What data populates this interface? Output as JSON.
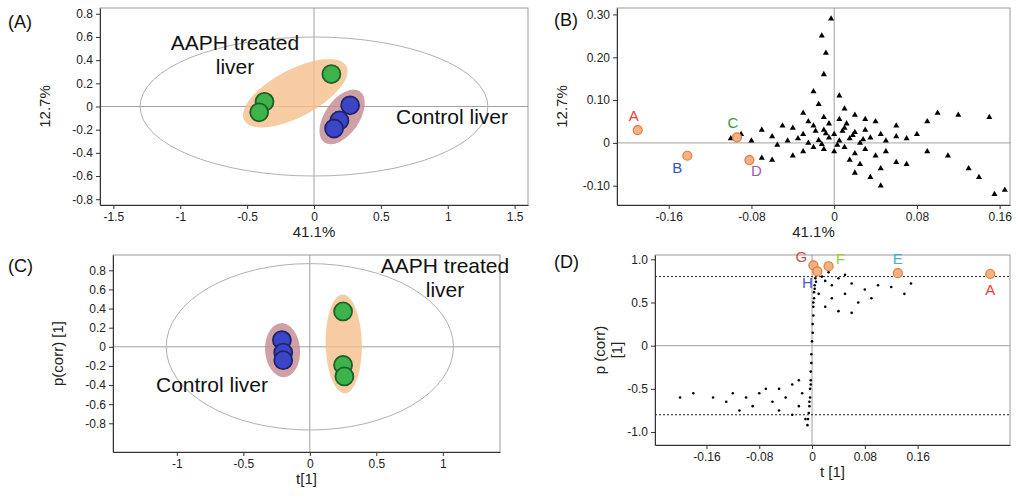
{
  "chart_data": [
    {
      "type": "scatter",
      "title": "(A)",
      "x_label": "41.1%",
      "y_label": "12.7%",
      "xlim": [
        -1.6,
        1.6
      ],
      "ylim": [
        -0.85,
        0.85
      ],
      "xticks": [
        -1.5,
        -1,
        -0.5,
        0,
        0.5,
        1,
        1.5
      ],
      "yticks": [
        0.8,
        0.6,
        0.4,
        0.2,
        0,
        -0.2,
        -0.4,
        -0.6,
        -0.8
      ],
      "ellipse": {
        "cx": 0,
        "cy": 0,
        "rx": 1.3,
        "ry": 0.6
      },
      "ref_lines": {
        "x": [
          0
        ],
        "y": [
          0
        ]
      },
      "series": [
        {
          "name": "AAPH treated liver",
          "color": "#3cb44b",
          "marker": "circle",
          "x": [
            -0.37,
            -0.41,
            0.13
          ],
          "y": [
            0.04,
            -0.05,
            0.28
          ]
        },
        {
          "name": "Control liver",
          "color": "#3a45c8",
          "marker": "circle",
          "x": [
            0.27,
            0.19,
            0.15
          ],
          "y": [
            0.01,
            -0.12,
            -0.19
          ]
        }
      ]
    },
    {
      "type": "scatter",
      "title": "(B)",
      "x_label": "41.1%",
      "y_label": "12.7%",
      "xlim": [
        -0.21,
        0.17
      ],
      "ylim": [
        -0.145,
        0.315
      ],
      "xticks": [
        -0.16,
        -0.08,
        0,
        0.08,
        0.16
      ],
      "yticks": [
        {
          "value": 0.3,
          "label": "0.30"
        },
        {
          "value": 0.2,
          "label": "0.20"
        },
        {
          "value": 0.1,
          "label": "0.10"
        },
        0,
        {
          "value": -0.1,
          "label": "-0.10"
        }
      ],
      "ref_lines": {
        "x": [
          0
        ],
        "y": [
          0
        ]
      },
      "series": [
        {
          "color": "#000000",
          "marker": "triangle",
          "x": [
            -0.003,
            -0.012,
            -0.008,
            -0.01,
            -0.02,
            0.005,
            -0.015,
            0.01,
            -0.03,
            0.02,
            0.1,
            0.12,
            0.15,
            0.09,
            0.06,
            0.04,
            -0.05,
            -0.07,
            -0.09,
            -0.06,
            -0.04,
            -0.03,
            -0.02,
            -0.01,
            0,
            0.01,
            0.02,
            0.03,
            0.015,
            0.005,
            -0.005,
            -0.015,
            -0.025,
            -0.035,
            -0.045,
            -0.055,
            0.025,
            0.035,
            0.045,
            0.05,
            0.06,
            0.07,
            0.08,
            -0.08,
            -0.1,
            -0.02,
            -0.01,
            0,
            0.01,
            0.02,
            0.03,
            0.04,
            0.05,
            -0.03,
            -0.04,
            -0.06,
            -0.07,
            0.015,
            0.025,
            0.045,
            0.06,
            0.035,
            0.045,
            0.02,
            0.13,
            0.14,
            0.155,
            0.165,
            0.11,
            0.09,
            0.07,
            -0.005,
            0.005,
            -0.01,
            0.012,
            -0.025,
            0.03,
            0.008,
            -0.008,
            0.018,
            -0.018,
            0.003,
            -0.012,
            0.028
          ],
          "y": [
            0.29,
            0.25,
            0.21,
            0.16,
            0.12,
            0.11,
            0.09,
            0.08,
            0.07,
            0.065,
            0.07,
            0.065,
            0.06,
            0.05,
            0.04,
            0.05,
            0.04,
            0.03,
            0.02,
            0.015,
            0.035,
            0.02,
            0.04,
            0.03,
            0.02,
            0.035,
            0.025,
            0.03,
            0.01,
            0.005,
            0.012,
            0.006,
            0,
            0.01,
            0.005,
            -0.005,
            0,
            0.012,
            0.02,
            0.005,
            0.015,
            0.01,
            0.02,
            0.005,
            0.01,
            -0.01,
            -0.015,
            -0.02,
            -0.01,
            -0.025,
            -0.015,
            -0.03,
            -0.02,
            -0.02,
            -0.03,
            -0.04,
            -0.035,
            -0.04,
            -0.05,
            -0.06,
            -0.045,
            -0.08,
            -0.1,
            -0.07,
            -0.06,
            -0.08,
            -0.12,
            -0.11,
            -0.03,
            -0.02,
            -0.05,
            0.045,
            0.055,
            0.06,
            0.045,
            0.05,
            0.055,
            0.028,
            0.022,
            0.018,
            0.028,
            -0.005,
            -0.003,
            0.008
          ]
        }
      ],
      "annotations": [
        {
          "text": "A",
          "x": -0.19,
          "y": 0.03,
          "color": "#e8413a"
        },
        {
          "text": "B",
          "x": -0.142,
          "y": -0.03,
          "color": "#3355bb"
        },
        {
          "text": "C",
          "x": -0.094,
          "y": 0.013,
          "color": "#3a9a3a"
        },
        {
          "text": "D",
          "x": -0.082,
          "y": -0.04,
          "color": "#9b59b6"
        }
      ]
    },
    {
      "type": "scatter",
      "title": "(C)",
      "x_label": "t[1]",
      "y_label": "p(corr) [1]",
      "xlim": [
        -1.48,
        1.43
      ],
      "ylim": [
        -1.1,
        0.96
      ],
      "xticks": [
        -1,
        -0.5,
        0,
        0.5,
        1
      ],
      "yticks": [
        0.8,
        0.6,
        0.4,
        0.2,
        0,
        -0.2,
        -0.4,
        -0.6,
        -0.8
      ],
      "ellipse": {
        "cx": 0,
        "cy": 0,
        "rx": 1.08,
        "ry": 0.87
      },
      "ref_lines": {
        "x": [
          0
        ],
        "y": [
          0
        ]
      },
      "series": [
        {
          "name": "AAPH treated liver",
          "color": "#3cb44b",
          "marker": "circle",
          "x": [
            0.25,
            0.25,
            0.26
          ],
          "y": [
            0.37,
            -0.19,
            -0.31
          ]
        },
        {
          "name": "Control liver",
          "color": "#3a45c8",
          "marker": "circle",
          "x": [
            -0.21,
            -0.2,
            -0.2
          ],
          "y": [
            0.07,
            -0.06,
            -0.14
          ]
        }
      ]
    },
    {
      "type": "scatter",
      "title": "(D)",
      "x_label": "t [1]",
      "y_label": "p (corr) [1]",
      "xlim": [
        -0.238,
        0.3
      ],
      "ylim": [
        -1.15,
        1.05
      ],
      "xticks": [
        -0.16,
        -0.08,
        0,
        0.08,
        0.16
      ],
      "yticks": [
        {
          "value": 1,
          "label": "1.0"
        },
        0.5,
        0,
        -0.5,
        {
          "value": -1,
          "label": "-1.0"
        }
      ],
      "ref_lines": {
        "x": [
          0
        ],
        "y": [
          0
        ]
      },
      "cutoff_lines": {
        "y": [
          0.8,
          -0.8
        ]
      },
      "series": [
        {
          "color": "#000000",
          "marker": "dot",
          "x": [
            0,
            0.001,
            0.001,
            0.002,
            0.002,
            0.003,
            0.003,
            0.004,
            0.005,
            0.006,
            0.007,
            0.002,
            0.004,
            0.006,
            0.02,
            0.03,
            0.04,
            0.06,
            0.08,
            0.1,
            0.12,
            0.05,
            0.03,
            0.07,
            0.02,
            0.09,
            0.15,
            0.14,
            0.04,
            0.01,
            0.015,
            0.025,
            0.05,
            0.06,
            -0.001,
            -0.001,
            -0.002,
            -0.002,
            -0.003,
            -0.003,
            -0.004,
            -0.005,
            -0.006,
            -0.007,
            -0.002,
            -0.004,
            -0.02,
            -0.03,
            -0.05,
            -0.08,
            -0.1,
            -0.12,
            -0.15,
            -0.18,
            -0.2,
            -0.04,
            -0.06,
            -0.09,
            -0.11,
            -0.02,
            -0.03,
            -0.01,
            -0.07,
            -0.13,
            -0.05,
            -0.015
          ],
          "y": [
            0.05,
            0.15,
            0.25,
            0.35,
            0.45,
            0.55,
            0.62,
            0.7,
            0.78,
            0.84,
            0.9,
            0.5,
            0.66,
            0.74,
            0.75,
            0.7,
            0.78,
            0.72,
            0.65,
            0.7,
            0.68,
            0.6,
            0.55,
            0.5,
            0.45,
            0.55,
            0.72,
            0.6,
            0.4,
            0.6,
            0.8,
            0.85,
            0.82,
            0.38,
            -0.1,
            -0.2,
            -0.3,
            -0.4,
            -0.5,
            -0.6,
            -0.7,
            -0.78,
            -0.85,
            -0.92,
            -0.45,
            -0.65,
            -0.4,
            -0.45,
            -0.5,
            -0.55,
            -0.6,
            -0.55,
            -0.6,
            -0.55,
            -0.6,
            -0.6,
            -0.65,
            -0.7,
            -0.75,
            -0.7,
            -0.8,
            -0.85,
            -0.5,
            -0.65,
            -0.75,
            -0.55
          ]
        }
      ],
      "annotations": [
        {
          "text": "G",
          "x": 0.002,
          "y": 0.93,
          "color": "#c0504d"
        },
        {
          "text": "F",
          "x": 0.025,
          "y": 0.92,
          "color": "#9acd32"
        },
        {
          "text": "H",
          "x": 0.008,
          "y": 0.86,
          "color": "#3a5fcd"
        },
        {
          "text": "E",
          "x": 0.13,
          "y": 0.84,
          "color": "#4bacc6"
        },
        {
          "text": "A",
          "x": 0.27,
          "y": 0.83,
          "color": "#e8413a"
        }
      ]
    }
  ]
}
